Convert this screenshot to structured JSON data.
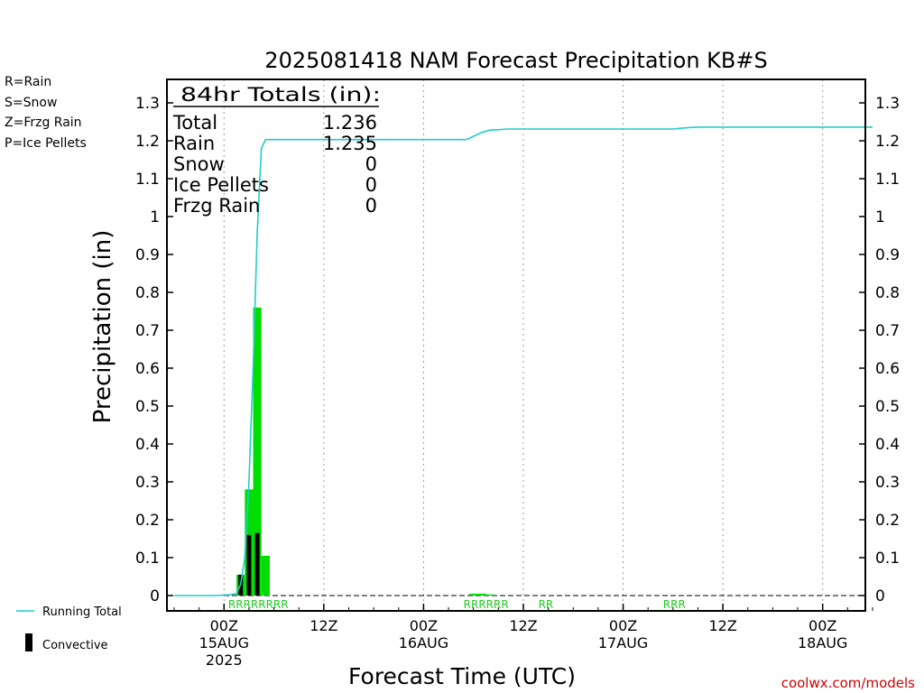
{
  "title": "2025081418 NAM Forecast Precipitation KB#S",
  "ptype_legend": [
    {
      "text": "R=Rain",
      "color": "#22cc22"
    },
    {
      "text": "S=Snow",
      "color": "#3355dd"
    },
    {
      "text": "Z=Frzg Rain",
      "color": "#ee8833"
    },
    {
      "text": "P=Ice Pellets",
      "color": "#dd2288"
    }
  ],
  "totals": {
    "header": "84hr Totals (in):",
    "rows": [
      {
        "label": "Total",
        "value": "1.236"
      },
      {
        "label": "Rain",
        "value": "1.235"
      },
      {
        "label": "Snow",
        "value": "0"
      },
      {
        "label": "Ice Pellets",
        "value": "0"
      },
      {
        "label": "Frzg Rain",
        "value": "0"
      }
    ]
  },
  "legend": {
    "running_total": "Running Total",
    "convective": "Convective"
  },
  "credit": "coolwx.com/models",
  "colors": {
    "running_total": "#22cccc",
    "total_bar": "#00dd00",
    "convective_bar": "#000000",
    "grid": "#999999",
    "rain_code": "#22cc22"
  },
  "chart_data": {
    "type": "bar",
    "title": "2025081418 NAM Forecast Precipitation KB#S",
    "xlabel": "Forecast Time (UTC)",
    "ylabel": "Precipitation (in)",
    "x_unit": "hours since 2025-08-14 18Z",
    "xlim": [
      0,
      84
    ],
    "ylim": [
      0,
      1.3
    ],
    "y_ticks": [
      0,
      0.1,
      0.2,
      0.3,
      0.4,
      0.5,
      0.6,
      0.7,
      0.8,
      0.9,
      1,
      1.1,
      1.2,
      1.3
    ],
    "y_tick_labels": [
      "0",
      "0.1",
      "0.2",
      "0.3",
      "0.4",
      "0.5",
      "0.6",
      "0.7",
      "0.8",
      "0.9",
      "1",
      "1.1",
      "1.2",
      "1.3"
    ],
    "x_ticks": [
      {
        "x": 6,
        "lines": [
          "00Z",
          "15AUG",
          "2025"
        ]
      },
      {
        "x": 18,
        "lines": [
          "12Z"
        ]
      },
      {
        "x": 30,
        "lines": [
          "00Z",
          "16AUG"
        ]
      },
      {
        "x": 42,
        "lines": [
          "12Z"
        ]
      },
      {
        "x": 54,
        "lines": [
          "00Z",
          "17AUG"
        ]
      },
      {
        "x": 66,
        "lines": [
          "12Z"
        ]
      },
      {
        "x": 78,
        "lines": [
          "00Z",
          "18AUG"
        ]
      }
    ],
    "series": [
      {
        "name": "Total",
        "x": [
          8,
          9,
          10,
          11,
          36,
          37,
          38
        ],
        "values": [
          0.055,
          0.28,
          0.76,
          0.105,
          0.005,
          0.005,
          0.003
        ]
      },
      {
        "name": "Convective",
        "x": [
          8,
          9,
          10
        ],
        "values": [
          0.055,
          0.16,
          0.165
        ]
      },
      {
        "name": "Running Total",
        "x": [
          0,
          5,
          6.5,
          7.5,
          8,
          8.5,
          9,
          9.5,
          10,
          10.5,
          11,
          35,
          35.5,
          36,
          37,
          38,
          39,
          40,
          60,
          61,
          62,
          63,
          84
        ],
        "values": [
          0,
          0,
          0.002,
          0.005,
          0.03,
          0.1,
          0.3,
          0.6,
          0.96,
          1.18,
          1.203,
          1.203,
          1.206,
          1.212,
          1.222,
          1.228,
          1.229,
          1.231,
          1.231,
          1.233,
          1.235,
          1.236,
          1.236
        ]
      }
    ],
    "ptype_codes": [
      {
        "x_start": 6.5,
        "text": "RRRRRRRR"
      },
      {
        "x_start": 34.8,
        "text": "RRRRRR"
      },
      {
        "x_start": 43.8,
        "text": "RR"
      },
      {
        "x_start": 58.8,
        "text": "RRR"
      }
    ]
  }
}
